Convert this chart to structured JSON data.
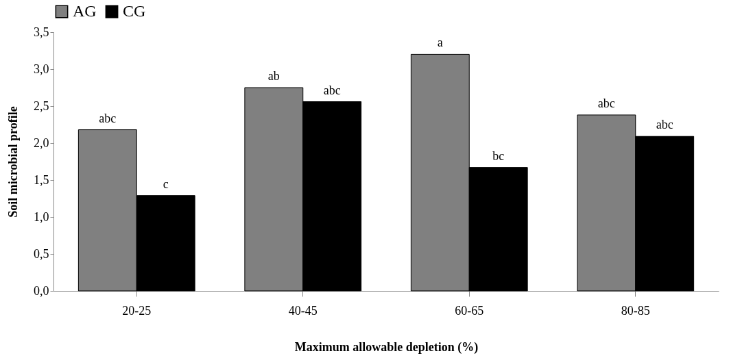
{
  "chart_data": {
    "type": "bar",
    "xlabel": "Maximum allowable depletion (%)",
    "ylabel": "Soil microbial profile",
    "categories": [
      "20-25",
      "40-45",
      "60-65",
      "80-85"
    ],
    "series": [
      {
        "name": "AG",
        "color": "#808080",
        "values": [
          2.18,
          2.75,
          3.2,
          2.38
        ],
        "value_labels": [
          "abc",
          "ab",
          "a",
          "abc"
        ]
      },
      {
        "name": "CG",
        "color": "#000000",
        "values": [
          1.29,
          2.56,
          1.67,
          2.09
        ],
        "value_labels": [
          "c",
          "abc",
          "bc",
          "abc"
        ]
      }
    ],
    "ylim": [
      0,
      3.5
    ],
    "yticks": [
      {
        "value": 0,
        "label": "0,0"
      },
      {
        "value": 0.5,
        "label": "0,5"
      },
      {
        "value": 1,
        "label": "1,0"
      },
      {
        "value": 1.5,
        "label": "1,5"
      },
      {
        "value": 2,
        "label": "2,0"
      },
      {
        "value": 2.5,
        "label": "2,5"
      },
      {
        "value": 3,
        "label": "3,0"
      },
      {
        "value": 3.5,
        "label": "3,5"
      }
    ],
    "grid": false,
    "legend": "top"
  }
}
